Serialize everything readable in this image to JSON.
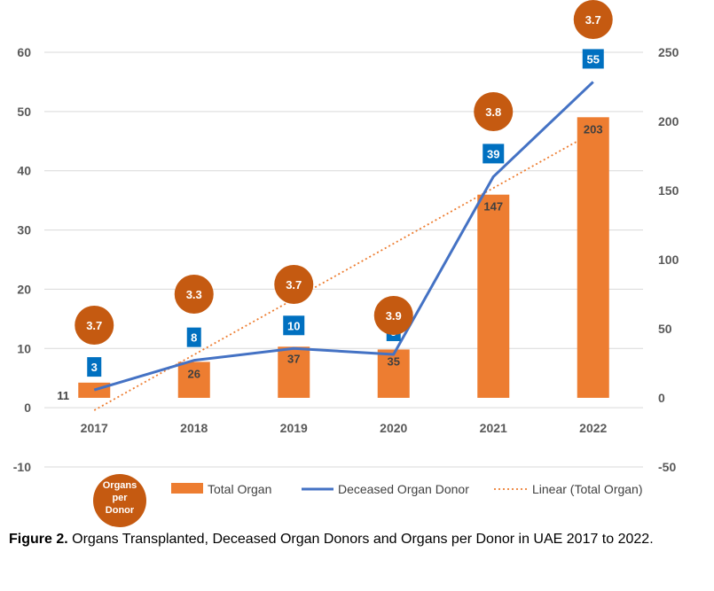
{
  "chart_data": {
    "type": "bar",
    "categories": [
      "2017",
      "2018",
      "2019",
      "2020",
      "2021",
      "2022"
    ],
    "left_axis": {
      "min": -10,
      "max": 60,
      "ticks": [
        -10,
        0,
        10,
        20,
        30,
        40,
        50,
        60
      ]
    },
    "right_axis": {
      "min": -50,
      "max": 250,
      "ticks": [
        -50,
        0,
        50,
        100,
        150,
        200,
        250
      ]
    },
    "series": [
      {
        "name": "Total Organ",
        "kind": "bar",
        "axis": "right",
        "values": [
          11,
          26,
          37,
          35,
          147,
          203
        ],
        "color": "#ED7D31"
      },
      {
        "name": "Deceased Organ Donor",
        "kind": "line",
        "axis": "left",
        "values": [
          3,
          8,
          10,
          9,
          39,
          55
        ],
        "color": "#4472C4"
      },
      {
        "name": "Linear (Total Organ)",
        "kind": "trendline",
        "axis": "right",
        "from": -9,
        "to": 192,
        "color": "#ED7D31"
      }
    ],
    "organs_per_donor": {
      "label_lines": [
        "Organs",
        "per",
        "Donor"
      ],
      "values": [
        "3.7",
        "3.3",
        "3.7",
        "3.9",
        "3.8",
        "3.7"
      ],
      "color": "#C55A11"
    },
    "legend_position": "bottom"
  },
  "caption": {
    "prefix": "Figure 2.",
    "text": " Organs Transplanted, Deceased Organ Donors and Organs per Donor in UAE 2017 to 2022."
  }
}
